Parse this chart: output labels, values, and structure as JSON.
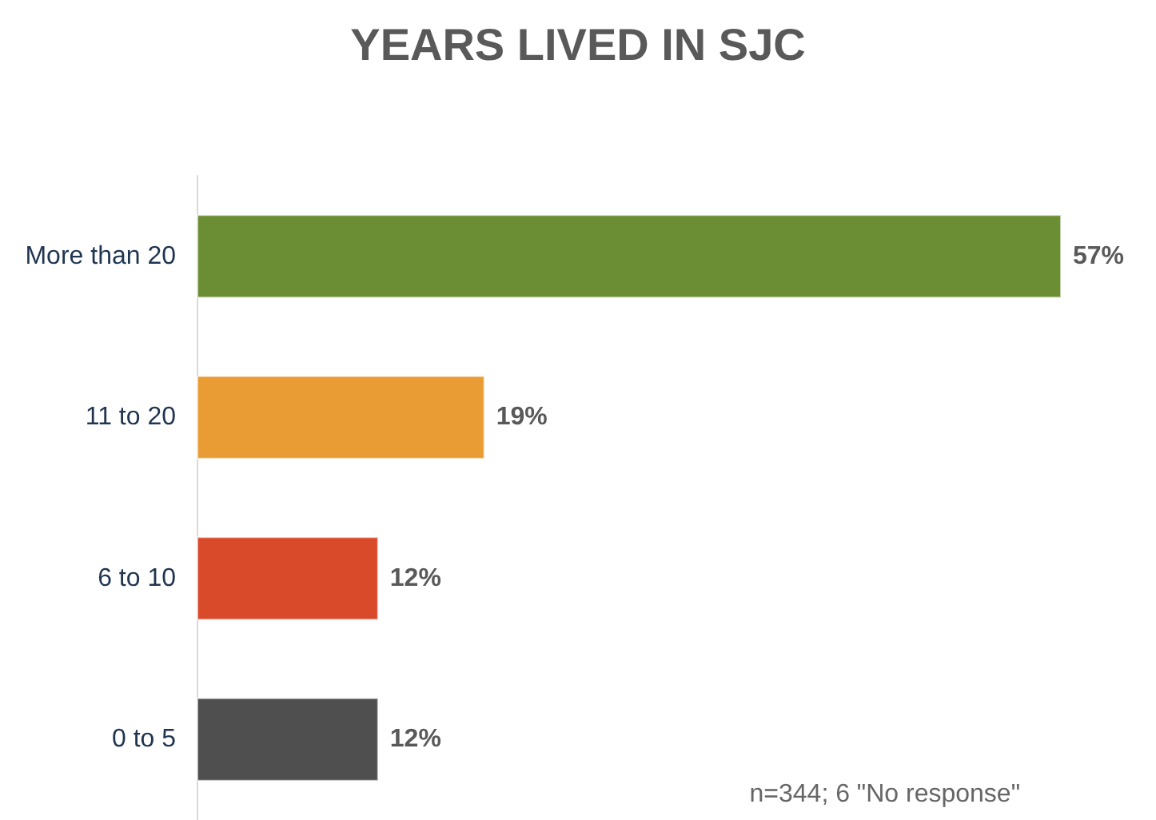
{
  "chart_data": {
    "type": "bar",
    "orientation": "horizontal",
    "title": "YEARS LIVED IN SJC",
    "categories": [
      "More than 20",
      "11 to 20",
      "6 to 10",
      "0 to 5"
    ],
    "values": [
      57,
      19,
      12,
      12
    ],
    "colors": [
      "#6b8e35",
      "#e89c33",
      "#d94a2b",
      "#4f4f4f"
    ],
    "value_labels": [
      "57%",
      "19%",
      "12%",
      "12%"
    ],
    "annotations": [
      "n=344; 6 \"No response\""
    ]
  }
}
